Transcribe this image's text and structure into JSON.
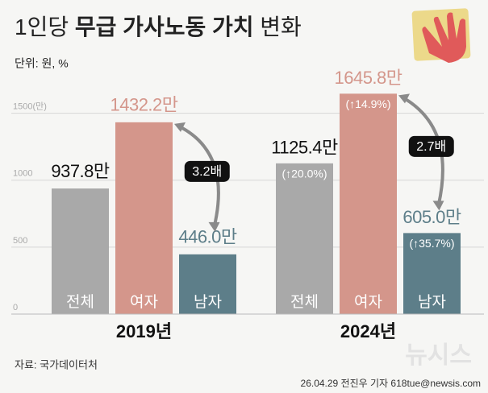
{
  "title_parts": [
    "1인당",
    "무급 가사노동 가치",
    "변화"
  ],
  "unit": "단위: 원, %",
  "source": "자료: 국가데이터처",
  "credit": "26.04.29 전진우 기자 618tue@newsis.com",
  "watermark": "뉴시스",
  "chart_data": {
    "type": "bar",
    "categories": [
      "2019년",
      "2024년"
    ],
    "series": [
      {
        "name": "전체",
        "color": "#a9a9a9",
        "label_color": "#111111",
        "values": [
          937.8,
          1125.4
        ],
        "value_labels": [
          "937.8만",
          "1125.4만"
        ],
        "change_labels": [
          null,
          "(↑20.0%)"
        ]
      },
      {
        "name": "여자",
        "color": "#d4968b",
        "label_color": "#d4968b",
        "values": [
          1432.2,
          1645.8
        ],
        "value_labels": [
          "1432.2만",
          "1645.8만"
        ],
        "change_labels": [
          null,
          "(↑14.9%)"
        ]
      },
      {
        "name": "남자",
        "color": "#5d7e89",
        "label_color": "#5d7e89",
        "values": [
          446.0,
          605.0
        ],
        "value_labels": [
          "446.0만",
          "605.0만"
        ],
        "change_labels": [
          null,
          "(↑35.7%)"
        ]
      }
    ],
    "annotations": [
      "3.2배",
      "2.7배"
    ],
    "ylim": [
      0,
      1750
    ],
    "yticks": [
      0,
      500,
      1000,
      {
        "value": 1500,
        "label": "1500(만)"
      }
    ],
    "grid": true
  }
}
